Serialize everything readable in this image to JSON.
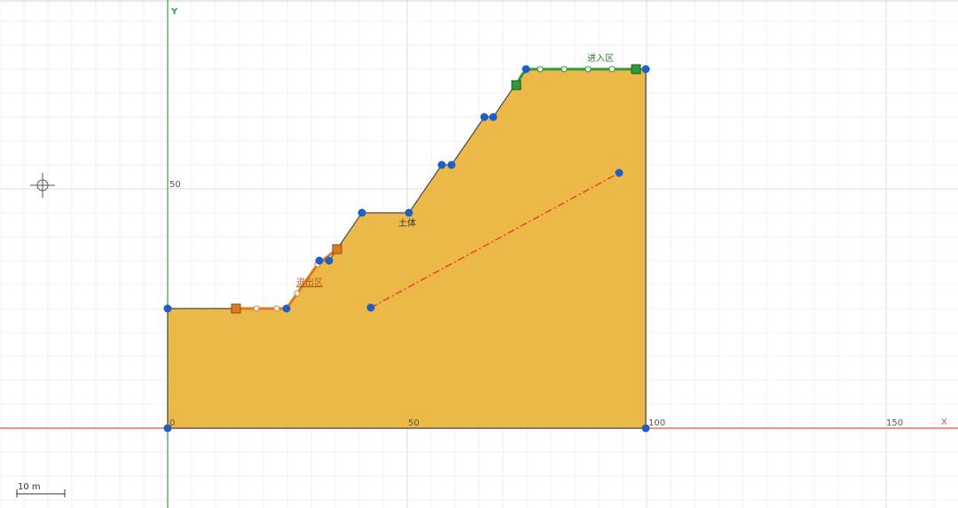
{
  "axes": {
    "x_label": "X",
    "y_label": "Y",
    "x_ticks": [
      0,
      50,
      100,
      150
    ],
    "y_ticks": [
      50
    ]
  },
  "labels": {
    "entry": "进入区",
    "soil": "土体",
    "exit": "退出区"
  },
  "scale_bar": "10 m"
}
